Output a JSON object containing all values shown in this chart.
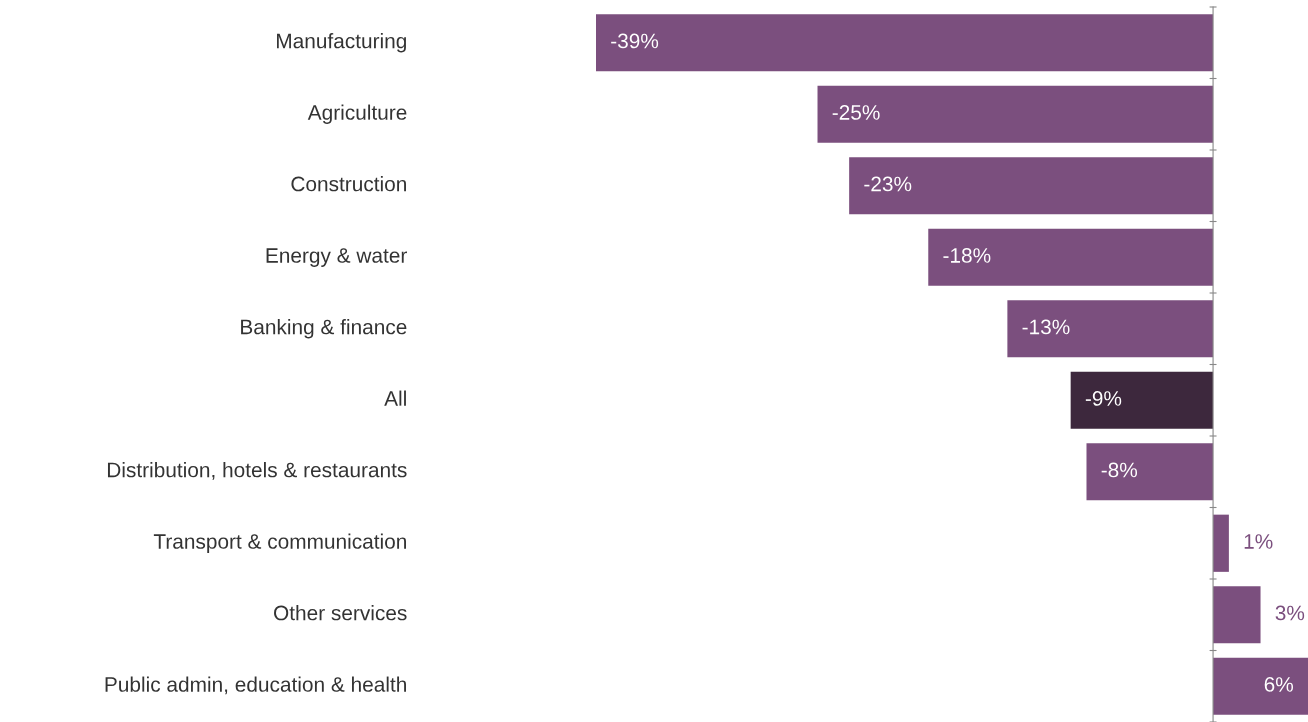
{
  "chart_data": {
    "type": "bar",
    "orientation": "horizontal",
    "categories": [
      "Manufacturing",
      "Agriculture",
      "Construction",
      "Energy & water",
      "Banking & finance",
      "All",
      "Distribution, hotels & restaurants",
      "Transport & communication",
      "Other services",
      "Public admin, education & health"
    ],
    "values": [
      -39,
      -25,
      -23,
      -18,
      -13,
      -9,
      -8,
      1,
      3,
      6
    ],
    "colors": [
      "#7b4f7e",
      "#7b4f7e",
      "#7b4f7e",
      "#7b4f7e",
      "#7b4f7e",
      "#3d283d",
      "#7b4f7e",
      "#7b4f7e",
      "#7b4f7e",
      "#7b4f7e"
    ],
    "value_labels": [
      "-39%",
      "-25%",
      "-23%",
      "-18%",
      "-13%",
      "-9%",
      "-8%",
      "1%",
      "3%",
      "6%"
    ],
    "grid": false,
    "legend": false
  }
}
